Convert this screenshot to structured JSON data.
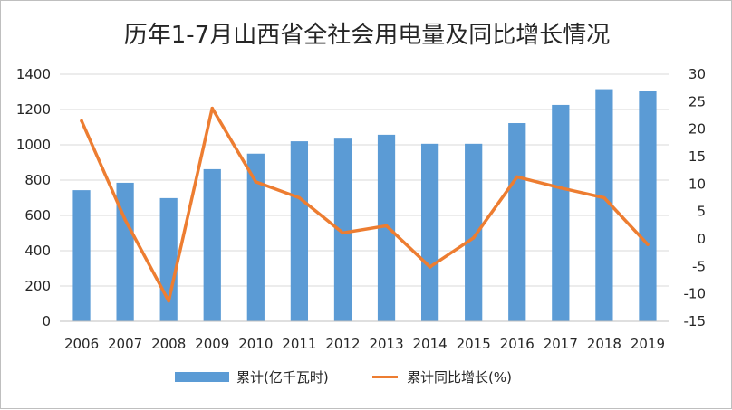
{
  "chart_data": {
    "type": "bar",
    "title": "历年1-7月山西省全社会用电量及同比增长情况",
    "categories": [
      "2006",
      "2007",
      "2008",
      "2009",
      "2010",
      "2011",
      "2012",
      "2013",
      "2014",
      "2015",
      "2016",
      "2017",
      "2018",
      "2019"
    ],
    "series": [
      {
        "name": "累计(亿千瓦时)",
        "type": "bar",
        "axis": "left",
        "color": "#5b9bd5",
        "values": [
          743,
          785,
          698,
          862,
          950,
          1020,
          1035,
          1057,
          1006,
          1006,
          1123,
          1226,
          1315,
          1305
        ]
      },
      {
        "name": "累计同比增长(%)",
        "type": "line",
        "axis": "right",
        "color": "#ed7d31",
        "values": [
          21.5,
          3.5,
          -11.3,
          23.8,
          10.4,
          7.5,
          1.1,
          2.4,
          -5.1,
          0.2,
          11.3,
          9.3,
          7.5,
          -1.0
        ]
      }
    ],
    "left_axis": {
      "ylim": [
        0,
        1400
      ],
      "ticks": [
        "0",
        "200",
        "400",
        "600",
        "800",
        "1000",
        "1200",
        "1400"
      ]
    },
    "right_axis": {
      "ylim": [
        -15,
        30
      ],
      "ticks": [
        "-15",
        "-10",
        "-5",
        "0",
        "5",
        "10",
        "15",
        "20",
        "25",
        "30"
      ]
    },
    "grid": true,
    "legend": "bottom-center"
  }
}
